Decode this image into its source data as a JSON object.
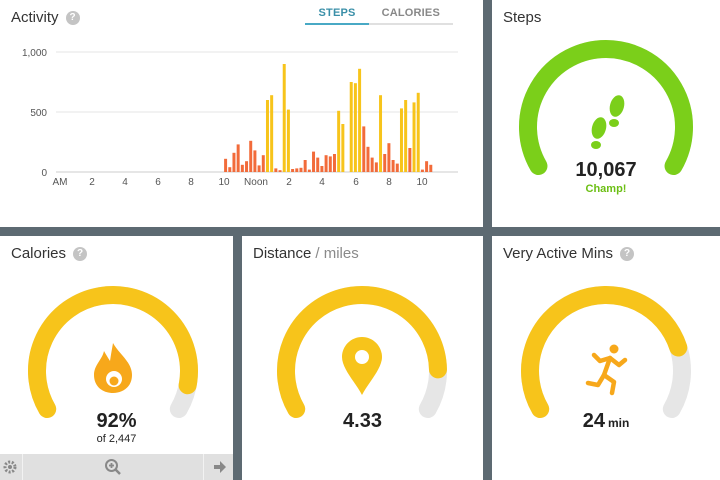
{
  "activity": {
    "title": "Activity",
    "tabs": [
      "STEPS",
      "CALORIES"
    ],
    "active_tab": "STEPS"
  },
  "chart_data": {
    "type": "bar",
    "ylim": [
      0,
      1000
    ],
    "y_ticks": [
      "1,000",
      "500",
      "0"
    ],
    "x_tick_labels": [
      "AM",
      "2",
      "4",
      "6",
      "8",
      "10",
      "Noon",
      "2",
      "4",
      "6",
      "8",
      "10"
    ],
    "series": [
      {
        "values": [
          0,
          0,
          0,
          0,
          0,
          0,
          0,
          0,
          0,
          0,
          0,
          0,
          0,
          0,
          0,
          0,
          0,
          0,
          0,
          0,
          0,
          0,
          0,
          0,
          0,
          0,
          0,
          0,
          0,
          0,
          0,
          0,
          0,
          0,
          0,
          0,
          0,
          0,
          0,
          0,
          110,
          40,
          160,
          230,
          60,
          90,
          260,
          180,
          55,
          140,
          600,
          640,
          30,
          15,
          900,
          520,
          25,
          30,
          35,
          100,
          20,
          170,
          120,
          50,
          140,
          130,
          150,
          510,
          400,
          0,
          750,
          740,
          860,
          380,
          210,
          120,
          80,
          640,
          150,
          240,
          100,
          70,
          530,
          600,
          200,
          580,
          660,
          20,
          90,
          60,
          0,
          0,
          0,
          0,
          0,
          0
        ]
      }
    ],
    "colors": {
      "high": "#f7c41b",
      "low": "#f26b3a"
    }
  },
  "steps": {
    "title": "Steps",
    "value": "10,067",
    "status": "Champ!",
    "fraction": 1.0,
    "color": "#7bcf1a",
    "icon": "footprints-icon"
  },
  "calories": {
    "title": "Calories",
    "value": "92%",
    "sub": "of 2,447",
    "fraction": 0.92,
    "color": "#f7c41b",
    "icon": "flame-icon"
  },
  "distance": {
    "title": "Distance",
    "unit_label": "/ miles",
    "value": "4.33",
    "fraction": 0.87,
    "color": "#f7c41b",
    "icon": "location-pin-icon"
  },
  "active_mins": {
    "title": "Very Active Mins",
    "value": "24",
    "unit": "min",
    "fraction": 0.8,
    "color": "#f7c41b",
    "icon": "running-person-icon"
  }
}
